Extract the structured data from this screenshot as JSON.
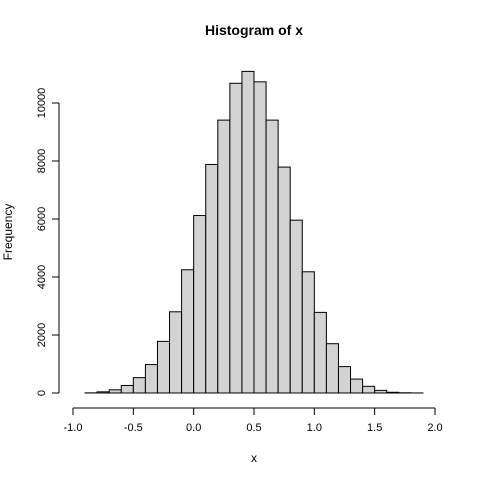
{
  "chart_data": {
    "type": "bar",
    "title": "Histogram of x",
    "xlabel": "x",
    "ylabel": "Frequency",
    "xlim": [
      -1.0,
      2.0
    ],
    "ylim": [
      0,
      11000
    ],
    "xticks": [
      -1.0,
      -0.5,
      0.0,
      0.5,
      1.0,
      1.5,
      2.0
    ],
    "xtick_labels": [
      "-1.0",
      "-0.5",
      "0.0",
      "0.5",
      "1.0",
      "1.5",
      "2.0"
    ],
    "yticks": [
      0,
      2000,
      4000,
      6000,
      8000,
      10000
    ],
    "ytick_labels": [
      "0",
      "2000",
      "4000",
      "6000",
      "8000",
      "10000"
    ],
    "bin_width": 0.1,
    "bin_starts": [
      -0.9,
      -0.8,
      -0.7,
      -0.6,
      -0.5,
      -0.4,
      -0.3,
      -0.2,
      -0.1,
      0.0,
      0.1,
      0.2,
      0.3,
      0.4,
      0.5,
      0.6,
      0.7,
      0.8,
      0.9,
      1.0,
      1.1,
      1.2,
      1.3,
      1.4,
      1.5,
      1.6,
      1.7,
      1.8
    ],
    "values": [
      5,
      40,
      110,
      260,
      530,
      980,
      1780,
      2800,
      4250,
      6120,
      7880,
      9410,
      10680,
      11090,
      10730,
      9410,
      7790,
      5960,
      4180,
      2780,
      1700,
      910,
      480,
      230,
      90,
      25,
      8,
      2
    ],
    "bar_fill": "#d3d3d3",
    "bar_stroke": "#000000",
    "grid": false,
    "legend": "none"
  }
}
